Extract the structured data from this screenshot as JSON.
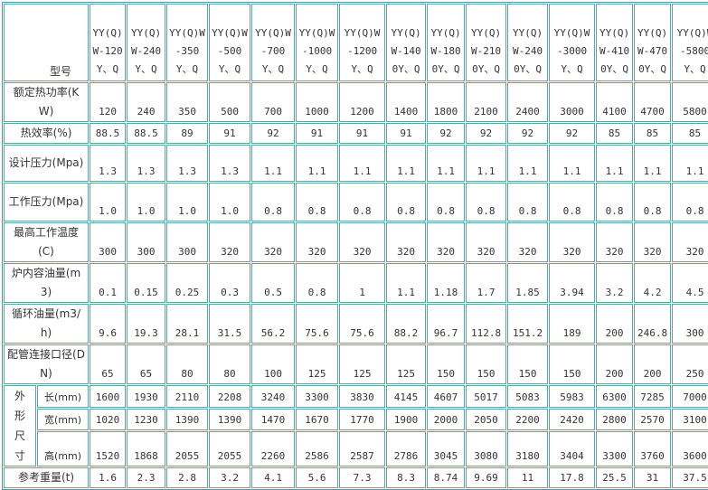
{
  "table": {
    "corner_label": "型号",
    "models": [
      "YY(Q)W-120Y、Q",
      "YY(Q)W-240Y、Q",
      "YY(Q)W-350Y、Q",
      "YY(Q)W-500Y、Q",
      "YY(Q)W-700Y、Q",
      "YY(Q)W-1000Y、Q",
      "YY(Q)W-1200Y、Q",
      "YY(Q)W-1400Y、Q",
      "YY(Q)W-1800Y、Q",
      "YY(Q)W-2100Y、Q",
      "YY(Q)W-2400Y、Q",
      "YY(Q)W-3000Y、Q",
      "YY(Q)W-4100Y、Q",
      "YY(Q)W-4700Y、Q",
      "YY(Q)W-5800Y、Q"
    ],
    "rows": [
      {
        "label": "额定热功率(KW)",
        "values": [
          "120",
          "240",
          "350",
          "500",
          "700",
          "1000",
          "1200",
          "1400",
          "1800",
          "2100",
          "2400",
          "3000",
          "4100",
          "4700",
          "5800"
        ]
      },
      {
        "label": "热效率(%)",
        "values": [
          "88.5",
          "88.5",
          "89",
          "91",
          "92",
          "91",
          "91",
          "91",
          "92",
          "92",
          "92",
          "92",
          "85",
          "85",
          "85"
        ]
      },
      {
        "label": "设计压力(Mpa)",
        "values": [
          "1.3",
          "1.3",
          "1.3",
          "1.3",
          "1.1",
          "1.1",
          "1.1",
          "1.1",
          "1.1",
          "1.1",
          "1.1",
          "1.1",
          "1.1",
          "1.1",
          "1.1"
        ]
      },
      {
        "label": "工作压力(Mpa)",
        "values": [
          "1.0",
          "1.0",
          "1.0",
          "1.0",
          "0.8",
          "0.8",
          "0.8",
          "0.8",
          "0.8",
          "0.8",
          "0.8",
          "0.8",
          "0.8",
          "0.8",
          "0.8"
        ]
      },
      {
        "label": "最高工作温度(C)",
        "values": [
          "300",
          "300",
          "300",
          "320",
          "320",
          "320",
          "320",
          "320",
          "320",
          "320",
          "320",
          "320",
          "320",
          "320",
          "320"
        ]
      },
      {
        "label": "炉内容油量(m3)",
        "values": [
          "0.1",
          "0.15",
          "0.25",
          "0.3",
          "0.5",
          "0.8",
          "1",
          "1.1",
          "1.18",
          "1.7",
          "1.85",
          "3.94",
          "3.2",
          "4.2",
          "4.5"
        ]
      },
      {
        "label": "循环油量(m3/h)",
        "values": [
          "9.6",
          "19.3",
          "28.1",
          "31.5",
          "56.2",
          "75.6",
          "75.6",
          "88.2",
          "96.7",
          "112.8",
          "151.2",
          "189",
          "200",
          "246.8",
          "300"
        ]
      },
      {
        "label": "配管连接口径(DN)",
        "values": [
          "65",
          "65",
          "80",
          "80",
          "100",
          "125",
          "125",
          "125",
          "150",
          "150",
          "150",
          "150",
          "200",
          "200",
          "250"
        ]
      }
    ],
    "dimension_group_label": "外形尺寸",
    "dimension_rows": [
      {
        "label": "长(mm)",
        "values": [
          "1600",
          "1930",
          "2110",
          "2208",
          "3240",
          "3300",
          "3830",
          "4145",
          "4607",
          "5017",
          "5083",
          "5983",
          "6300",
          "7285",
          "7000"
        ]
      },
      {
        "label": "宽(mm)",
        "values": [
          "1020",
          "1230",
          "1390",
          "1390",
          "1470",
          "1670",
          "1770",
          "1900",
          "2000",
          "2050",
          "2200",
          "2420",
          "2800",
          "2570",
          "3100"
        ]
      },
      {
        "label": "高(mm)",
        "values": [
          "1520",
          "1868",
          "2055",
          "2055",
          "2260",
          "2586",
          "2587",
          "2786",
          "3045",
          "3080",
          "3180",
          "3404",
          "3300",
          "3760",
          "3600"
        ]
      }
    ],
    "weight_row": {
      "label": "参考重量(t)",
      "values": [
        "1.6",
        "2.3",
        "2.8",
        "3.2",
        "4.1",
        "5.6",
        "7.3",
        "8.3",
        "8.74",
        "9.69",
        "11",
        "17.8",
        "25.5",
        "31",
        "37.5"
      ]
    }
  }
}
